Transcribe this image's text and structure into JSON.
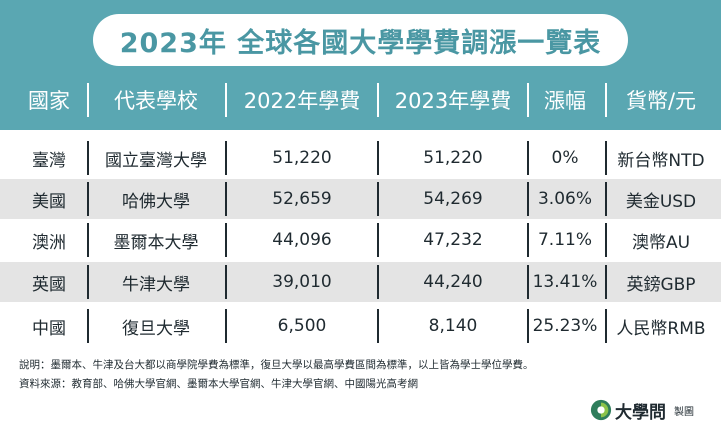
{
  "title": "2023年 全球各國大學學費調漲一覽表",
  "table": {
    "headers": [
      "國家",
      "代表學校",
      "2022年學費",
      "2023年學費",
      "漲幅",
      "貨幣/元"
    ],
    "rows": [
      {
        "country": "臺灣",
        "school": "國立臺灣大學",
        "fee_2022": "51,220",
        "fee_2023": "51,220",
        "increase": "0%",
        "currency": "新台幣NTD"
      },
      {
        "country": "美國",
        "school": "哈佛大學",
        "fee_2022": "52,659",
        "fee_2023": "54,269",
        "increase": "3.06%",
        "currency": "美金USD"
      },
      {
        "country": "澳洲",
        "school": "墨爾本大學",
        "fee_2022": "44,096",
        "fee_2023": "47,232",
        "increase": "7.11%",
        "currency": "澳幣AU"
      },
      {
        "country": "英國",
        "school": "牛津大學",
        "fee_2022": "39,010",
        "fee_2023": "44,240",
        "increase": "13.41%",
        "currency": "英鎊GBP"
      },
      {
        "country": "中國",
        "school": "復旦大學",
        "fee_2022": "6,500",
        "fee_2023": "8,140",
        "increase": "25.23%",
        "currency": "人民幣RMB"
      }
    ]
  },
  "notes": {
    "explanation": "說明：墨爾本、牛津及台大都以商學院學費為標準，復旦大學以最高學費區間為標準，以上皆為學士學位學費。",
    "source": "資料來源：教育部、哈佛大學官網、墨爾本大學官網、牛津大學官網、中國陽光高考網"
  },
  "brand": {
    "name": "大學問",
    "suffix": "製圖"
  },
  "colors": {
    "header_bg": "#5aa7b2",
    "title_text": "#4a97a3",
    "row_alt": "#e4e4e4",
    "text": "#1f2a30",
    "logo": "#2e7d5b"
  }
}
